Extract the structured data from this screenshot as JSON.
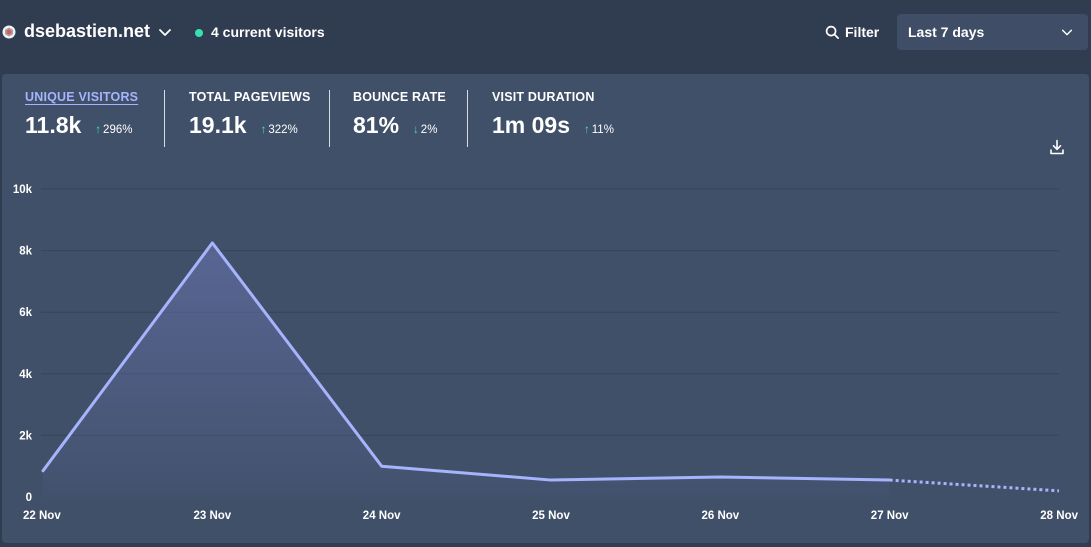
{
  "header": {
    "site_name": "dsebastien.net",
    "site_icon": "site-favicon-icon",
    "live_visitors": "4 current visitors",
    "filter_label": "Filter",
    "period_label": "Last 7 days"
  },
  "stats": [
    {
      "label": "UNIQUE VISITORS",
      "value": "11.8k",
      "change": "296%",
      "direction": "up",
      "active": true
    },
    {
      "label": "TOTAL PAGEVIEWS",
      "value": "19.1k",
      "change": "322%",
      "direction": "up",
      "active": false
    },
    {
      "label": "BOUNCE RATE",
      "value": "81%",
      "change": "2%",
      "direction": "down",
      "active": false
    },
    {
      "label": "VISIT DURATION",
      "value": "1m 09s",
      "change": "11%",
      "direction": "up",
      "active": false
    }
  ],
  "colors": {
    "background": "#303c4f",
    "card": "#405069",
    "line": "#a5b4fc",
    "accent_green": "#38e0b0"
  },
  "chart_data": {
    "type": "line",
    "title": "",
    "xlabel": "",
    "ylabel": "",
    "categories": [
      "22 Nov",
      "23 Nov",
      "24 Nov",
      "25 Nov",
      "26 Nov",
      "27 Nov",
      "28 Nov"
    ],
    "series": [
      {
        "values": [
          850,
          8250,
          1000,
          550,
          650,
          550,
          200
        ]
      }
    ],
    "partial_last_point": true,
    "y_ticks": [
      "0",
      "2k",
      "4k",
      "6k",
      "8k",
      "10k"
    ],
    "ylim": [
      0,
      10000
    ],
    "grid": true,
    "legend": "none"
  }
}
